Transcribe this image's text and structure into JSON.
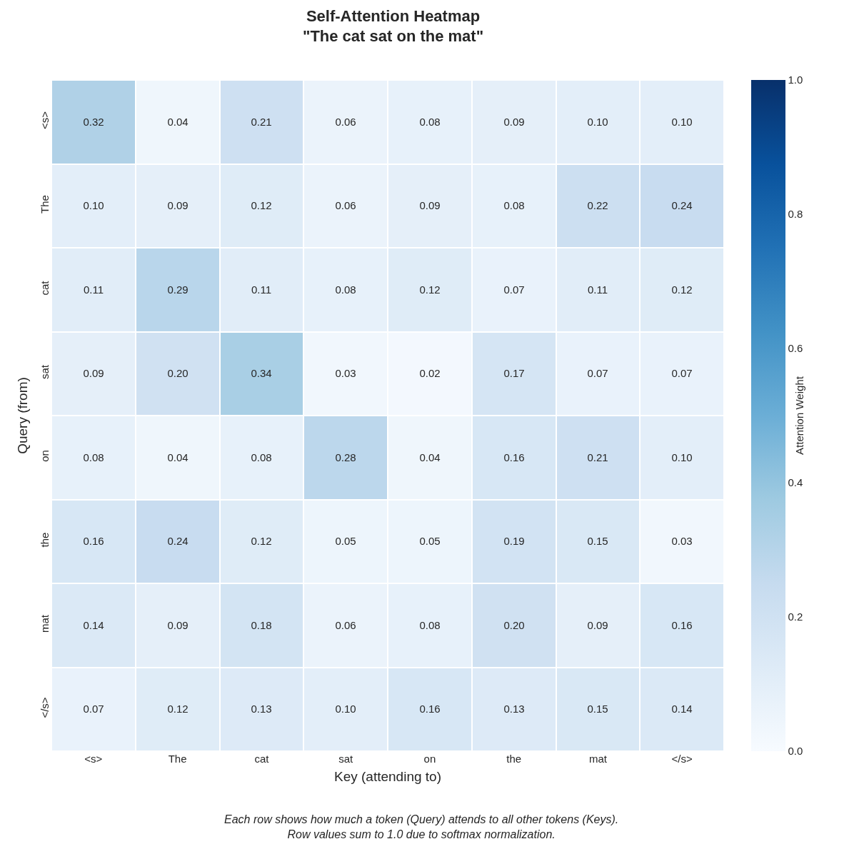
{
  "chart_data": {
    "type": "heatmap",
    "title": "Self-Attention Heatmap\n\"The cat sat on the mat\"",
    "xlabel": "Key (attending to)",
    "ylabel": "Query (from)",
    "clabel": "Attention Weight",
    "categories": [
      "<s>",
      "The",
      "cat",
      "sat",
      "on",
      "the",
      "mat",
      "</s>"
    ],
    "y_categories": [
      "<s>",
      "The",
      "cat",
      "sat",
      "on",
      "the",
      "mat",
      "</s>"
    ],
    "cells": [
      [
        0.32,
        0.04,
        0.21,
        0.06,
        0.08,
        0.09,
        0.1,
        0.1
      ],
      [
        0.1,
        0.09,
        0.12,
        0.06,
        0.09,
        0.08,
        0.22,
        0.24
      ],
      [
        0.11,
        0.29,
        0.11,
        0.08,
        0.12,
        0.07,
        0.11,
        0.12
      ],
      [
        0.09,
        0.2,
        0.34,
        0.03,
        0.02,
        0.17,
        0.07,
        0.07
      ],
      [
        0.08,
        0.04,
        0.08,
        0.28,
        0.04,
        0.16,
        0.21,
        0.1
      ],
      [
        0.16,
        0.24,
        0.12,
        0.05,
        0.05,
        0.19,
        0.15,
        0.03
      ],
      [
        0.14,
        0.09,
        0.18,
        0.06,
        0.08,
        0.2,
        0.09,
        0.16
      ],
      [
        0.07,
        0.12,
        0.13,
        0.1,
        0.16,
        0.13,
        0.15,
        0.14
      ]
    ],
    "cell_labels": [
      [
        "0.32",
        "0.04",
        "0.21",
        "0.06",
        "0.08",
        "0.09",
        "0.10",
        "0.10"
      ],
      [
        "0.10",
        "0.09",
        "0.12",
        "0.06",
        "0.09",
        "0.08",
        "0.22",
        "0.24"
      ],
      [
        "0.11",
        "0.29",
        "0.11",
        "0.08",
        "0.12",
        "0.07",
        "0.11",
        "0.12"
      ],
      [
        "0.09",
        "0.20",
        "0.34",
        "0.03",
        "0.02",
        "0.17",
        "0.07",
        "0.07"
      ],
      [
        "0.08",
        "0.04",
        "0.08",
        "0.28",
        "0.04",
        "0.16",
        "0.21",
        "0.10"
      ],
      [
        "0.16",
        "0.24",
        "0.12",
        "0.05",
        "0.05",
        "0.19",
        "0.15",
        "0.03"
      ],
      [
        "0.14",
        "0.09",
        "0.18",
        "0.06",
        "0.08",
        "0.20",
        "0.09",
        "0.16"
      ],
      [
        "0.07",
        "0.12",
        "0.13",
        "0.10",
        "0.16",
        "0.13",
        "0.15",
        "0.14"
      ]
    ],
    "clim": [
      0,
      1
    ],
    "cticks": [
      {
        "value": 0,
        "label": "0.0"
      },
      0.2,
      0.4,
      0.6,
      0.8,
      {
        "value": 1,
        "label": "1.0"
      }
    ],
    "annotations": [
      "Each row shows how much a token (Query) attends to all other tokens (Keys).\nRow values sum to 1.0 due to softmax normalization."
    ]
  }
}
